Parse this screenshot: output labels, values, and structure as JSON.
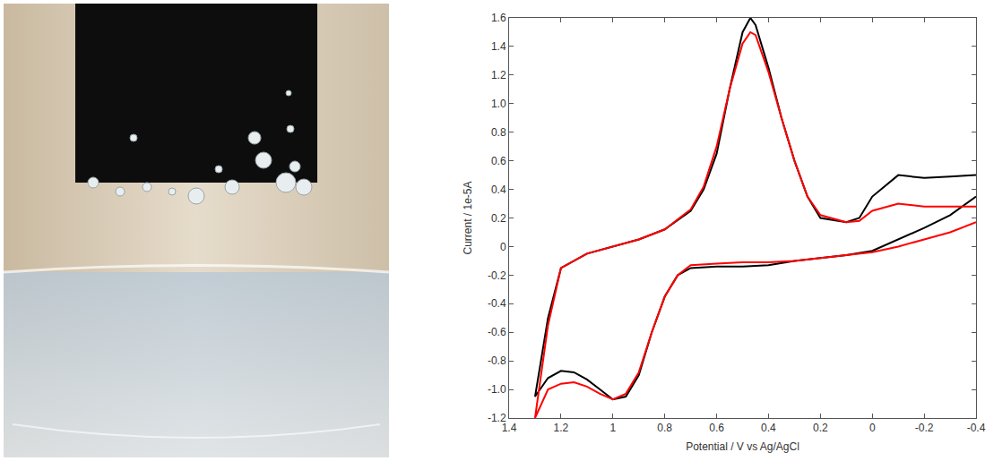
{
  "chart_data": {
    "type": "line",
    "x_label": "Potential / V vs Ag/AgCl",
    "y_label": "Current / 1e-5A",
    "xlim": [
      1.4,
      -0.4
    ],
    "xticks": [
      1.4,
      1.2,
      1,
      0.8,
      0.6,
      0.4,
      0.2,
      0,
      -0.2,
      -0.4
    ],
    "ylim": [
      -1.2,
      1.6
    ],
    "yticks": [
      1.6,
      1.4,
      1.2,
      {
        "value": 1.0,
        "label": "1.0"
      },
      0.8,
      0.6,
      0.4,
      0.2,
      0,
      -0.2,
      -0.4,
      -0.6,
      -0.8,
      {
        "value": -1.0,
        "label": "-1.0"
      },
      -1.2
    ],
    "grid": false,
    "series": [
      {
        "color": "#000000",
        "x": [
          -0.4,
          -0.3,
          -0.2,
          -0.1,
          0,
          0.1,
          0.2,
          0.3,
          0.4,
          0.5,
          0.6,
          0.7,
          0.75,
          0.8,
          0.85,
          0.9,
          0.95,
          1.0,
          1.05,
          1.1,
          1.15,
          1.2,
          1.25,
          1.3,
          1.25,
          1.2,
          1.1,
          1.0,
          0.9,
          0.8,
          0.7,
          0.65,
          0.6,
          0.55,
          0.5,
          0.47,
          0.45,
          0.4,
          0.35,
          0.3,
          0.25,
          0.2,
          0.1,
          0.05,
          0,
          -0.1,
          -0.2,
          -0.3,
          -0.4
        ],
        "values": [
          0.35,
          0.22,
          0.13,
          0.05,
          -0.03,
          -0.06,
          -0.08,
          -0.1,
          -0.13,
          -0.14,
          -0.14,
          -0.15,
          -0.2,
          -0.35,
          -0.6,
          -0.9,
          -1.05,
          -1.07,
          -1.0,
          -0.93,
          -0.88,
          -0.87,
          -0.92,
          -1.05,
          -0.5,
          -0.15,
          -0.05,
          0.0,
          0.05,
          0.12,
          0.25,
          0.4,
          0.65,
          1.1,
          1.5,
          1.6,
          1.55,
          1.25,
          0.9,
          0.6,
          0.35,
          0.2,
          0.17,
          0.2,
          0.35,
          0.5,
          0.48,
          0.49,
          0.5
        ]
      },
      {
        "color": "#ff0000",
        "x": [
          -0.4,
          -0.3,
          -0.2,
          -0.1,
          0,
          0.1,
          0.2,
          0.3,
          0.4,
          0.5,
          0.6,
          0.7,
          0.75,
          0.8,
          0.85,
          0.9,
          0.95,
          1.0,
          1.05,
          1.1,
          1.15,
          1.2,
          1.25,
          1.3,
          1.25,
          1.2,
          1.1,
          1.0,
          0.9,
          0.8,
          0.7,
          0.65,
          0.6,
          0.55,
          0.5,
          0.47,
          0.45,
          0.4,
          0.35,
          0.3,
          0.25,
          0.2,
          0.1,
          0.05,
          0,
          -0.1,
          -0.2,
          -0.3,
          -0.4
        ],
        "values": [
          0.17,
          0.1,
          0.05,
          0.0,
          -0.04,
          -0.06,
          -0.08,
          -0.1,
          -0.11,
          -0.11,
          -0.12,
          -0.13,
          -0.2,
          -0.35,
          -0.6,
          -0.88,
          -1.03,
          -1.07,
          -1.03,
          -0.98,
          -0.95,
          -0.96,
          -1.0,
          -1.2,
          -0.55,
          -0.15,
          -0.05,
          0.0,
          0.05,
          0.12,
          0.26,
          0.42,
          0.7,
          1.1,
          1.42,
          1.5,
          1.48,
          1.22,
          0.9,
          0.6,
          0.35,
          0.22,
          0.17,
          0.18,
          0.25,
          0.3,
          0.28,
          0.28,
          0.28
        ]
      }
    ]
  }
}
